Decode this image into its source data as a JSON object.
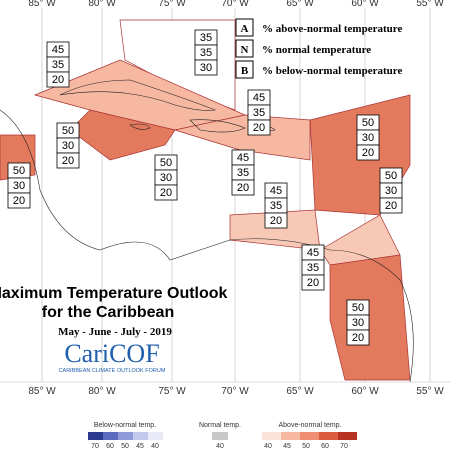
{
  "axis_labels": {
    "top": [
      "85° W",
      "80° W",
      "75° W",
      "70° W",
      "65° W",
      "60° W",
      "55° W"
    ],
    "bottom": [
      "85° W",
      "80° W",
      "75° W",
      "70° W",
      "65° W",
      "60° W",
      "55° W"
    ]
  },
  "legend": [
    {
      "key": "A",
      "text": "% above-normal temperature"
    },
    {
      "key": "N",
      "text": "% normal temperature"
    },
    {
      "key": "B",
      "text": "% below-normal temperature"
    }
  ],
  "title": {
    "line1": "Maximum Temperature Outlook",
    "line2": "for the Caribbean",
    "period": "May - June - July - 2019"
  },
  "logo": {
    "name": "CariCOF",
    "tagline": "CARIBBEAN CLIMATE OUTLOOK FORUM"
  },
  "regions": [
    {
      "above": 45,
      "normal": 35,
      "below": 20
    },
    {
      "above": 35,
      "normal": 35,
      "below": 30
    },
    {
      "above": 50,
      "normal": 30,
      "below": 20
    },
    {
      "above": 50,
      "normal": 30,
      "below": 20
    },
    {
      "above": 50,
      "normal": 30,
      "below": 20
    },
    {
      "above": 45,
      "normal": 35,
      "below": 20
    },
    {
      "above": 50,
      "normal": 30,
      "below": 20
    },
    {
      "above": 45,
      "normal": 35,
      "below": 20
    },
    {
      "above": 50,
      "normal": 30,
      "below": 20
    },
    {
      "above": 45,
      "normal": 35,
      "below": 20
    },
    {
      "above": 45,
      "normal": 35,
      "below": 20
    },
    {
      "above": 50,
      "normal": 30,
      "below": 20
    }
  ],
  "color_bar": {
    "below_label": "Below-normal temp.",
    "below_ticks": [
      70,
      60,
      50,
      45,
      40
    ],
    "normal_label": "Normal temp.",
    "normal_ticks": [
      40
    ],
    "above_label": "Above-normal temp.",
    "above_ticks": [
      40,
      45,
      50,
      60,
      70
    ]
  }
}
